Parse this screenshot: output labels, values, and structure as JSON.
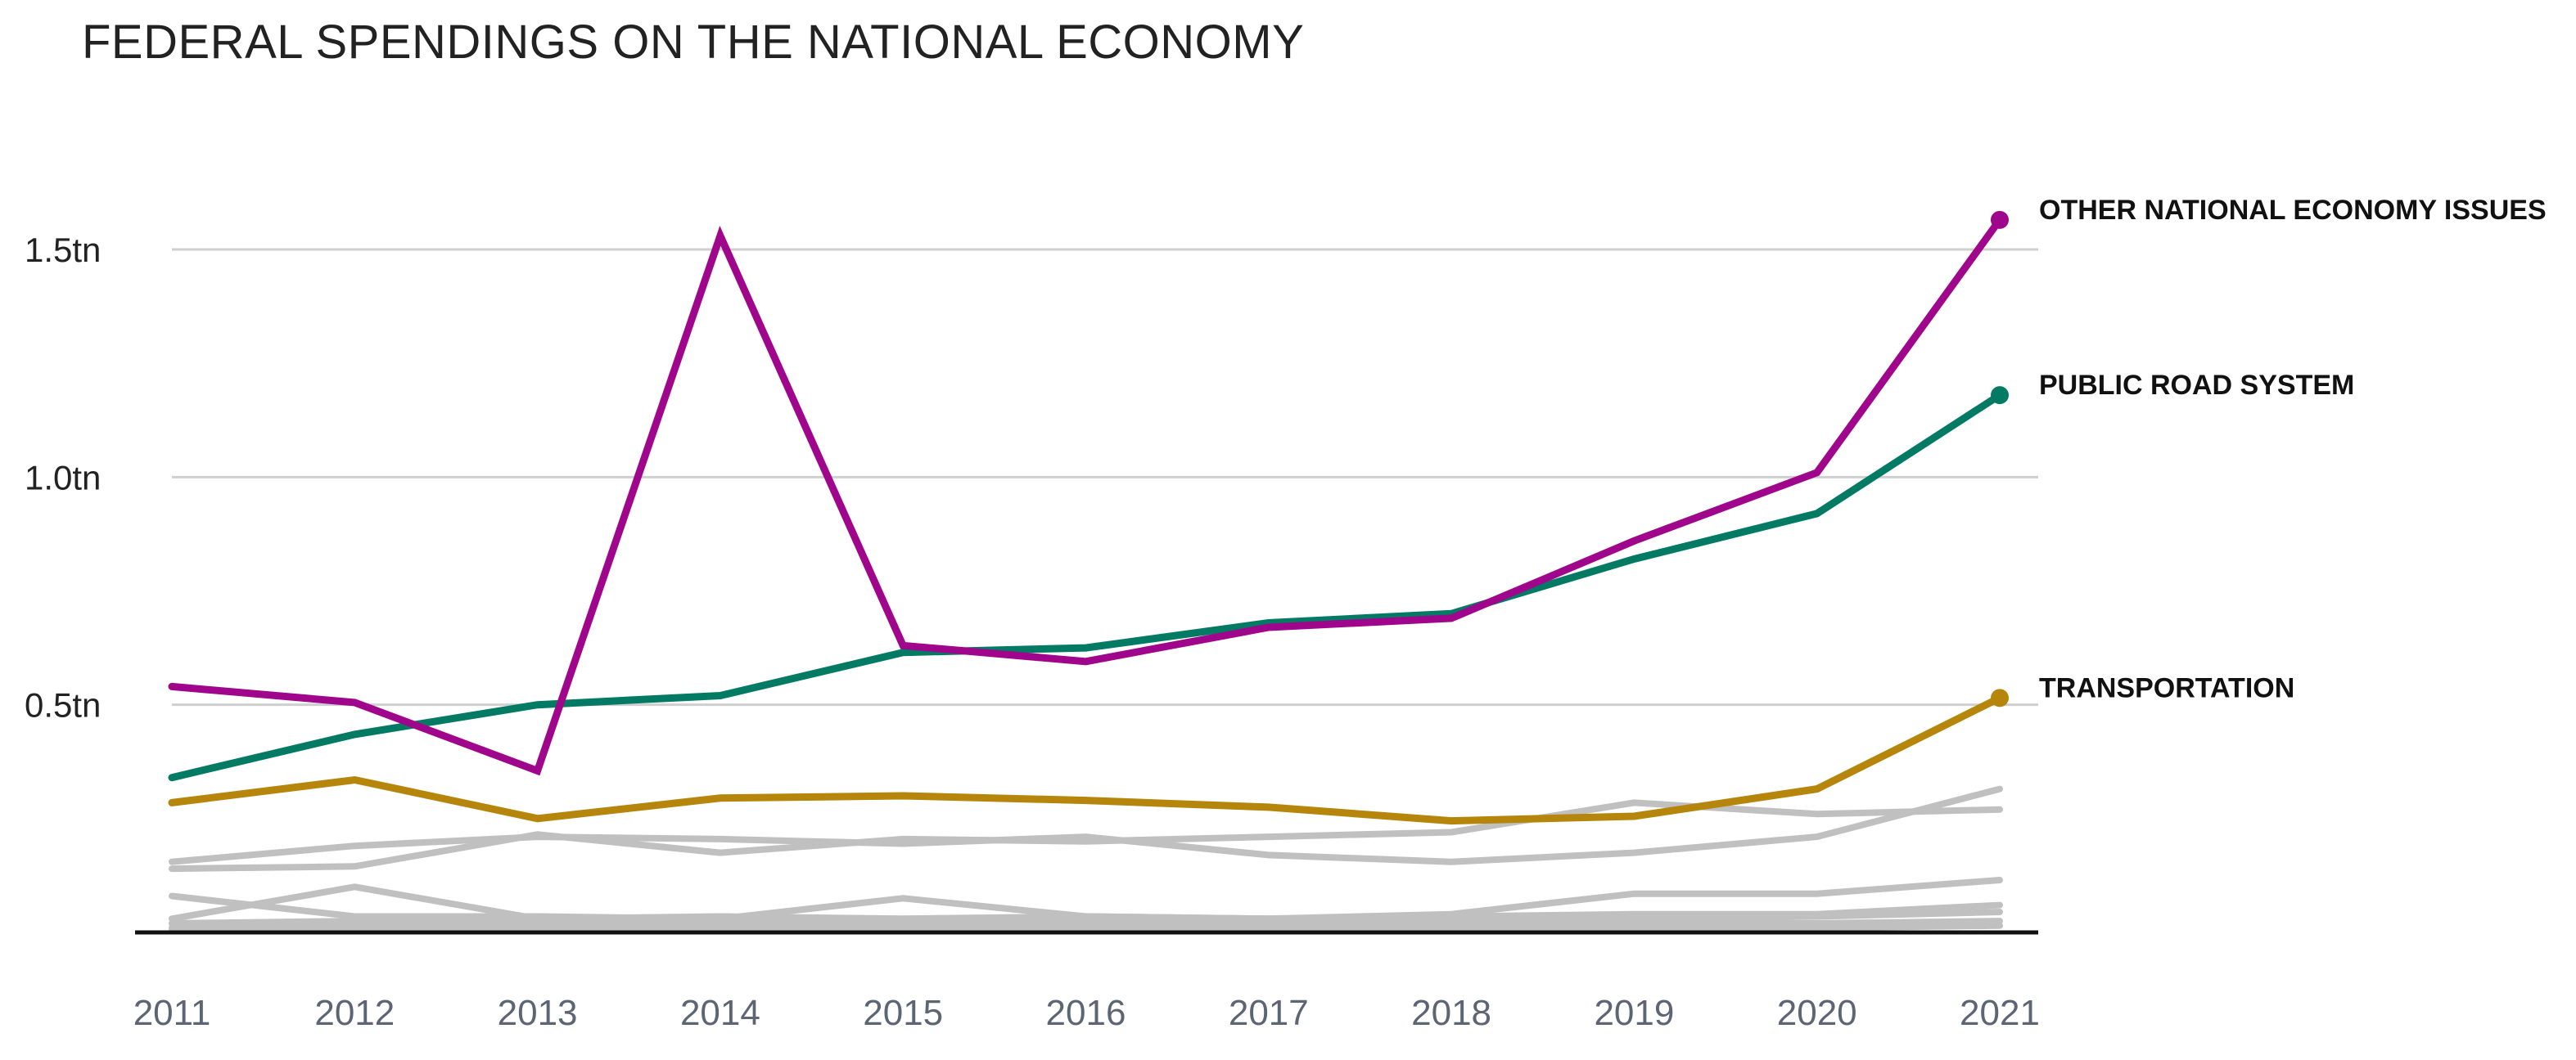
{
  "chart_data": {
    "type": "line",
    "title": "FEDERAL SPENDINGS ON THE NATIONAL ECONOMY",
    "x": [
      2011,
      2012,
      2013,
      2014,
      2015,
      2016,
      2017,
      2018,
      2019,
      2020,
      2021
    ],
    "x_tick_labels": [
      "2011",
      "2012",
      "2013",
      "2014",
      "2015",
      "2016",
      "2017",
      "2018",
      "2019",
      "2020",
      "2021"
    ],
    "y_ticks": [
      {
        "value": 0.5,
        "label": "0.5tn"
      },
      {
        "value": 1.0,
        "label": "1.0tn"
      },
      {
        "value": 1.5,
        "label": "1.5tn"
      }
    ],
    "ylim": [
      0,
      1.75
    ],
    "grid": true,
    "highlight_labels": "right of last point",
    "series": [
      {
        "name": "",
        "color": "#c0c0c0",
        "values": [
          0.155,
          0.19,
          0.21,
          0.205,
          0.195,
          0.21,
          0.17,
          0.155,
          0.175,
          0.21,
          0.315
        ]
      },
      {
        "name": "",
        "color": "#c0c0c0",
        "values": [
          0.14,
          0.145,
          0.215,
          0.175,
          0.205,
          0.2,
          0.21,
          0.22,
          0.285,
          0.26,
          0.27
        ]
      },
      {
        "name": "",
        "color": "#c0c0c0",
        "values": [
          0.08,
          0.035,
          0.035,
          0.03,
          0.075,
          0.035,
          0.03,
          0.04,
          0.085,
          0.085,
          0.115
        ]
      },
      {
        "name": "",
        "color": "#c0c0c0",
        "values": [
          0.03,
          0.1,
          0.03,
          0.035,
          0.03,
          0.035,
          0.03,
          0.035,
          0.04,
          0.04,
          0.06
        ]
      },
      {
        "name": "",
        "color": "#c0c0c0",
        "values": [
          0.02,
          0.025,
          0.025,
          0.025,
          0.025,
          0.025,
          0.025,
          0.03,
          0.03,
          0.035,
          0.045
        ]
      },
      {
        "name": "",
        "color": "#c0c0c0",
        "values": [
          0.01,
          0.015,
          0.015,
          0.015,
          0.015,
          0.015,
          0.02,
          0.02,
          0.02,
          0.02,
          0.025
        ]
      },
      {
        "name": "",
        "color": "#c0c0c0",
        "values": [
          0.005,
          0.005,
          0.01,
          0.01,
          0.01,
          0.01,
          0.01,
          0.01,
          0.01,
          0.01,
          0.015
        ]
      },
      {
        "name": "TRANSPORTATION",
        "color": "#b5860b",
        "values": [
          0.285,
          0.335,
          0.25,
          0.295,
          0.3,
          0.29,
          0.275,
          0.245,
          0.255,
          0.315,
          0.515
        ]
      },
      {
        "name": "PUBLIC ROAD SYSTEM",
        "color": "#037a63",
        "values": [
          0.34,
          0.435,
          0.5,
          0.52,
          0.615,
          0.625,
          0.68,
          0.7,
          0.82,
          0.92,
          1.18
        ]
      },
      {
        "name": "OTHER NATIONAL ECONOMY ISSUES",
        "color": "#a0068c",
        "values": [
          0.54,
          0.505,
          0.355,
          1.53,
          0.63,
          0.595,
          0.67,
          0.69,
          0.86,
          1.01,
          1.565
        ]
      }
    ]
  }
}
